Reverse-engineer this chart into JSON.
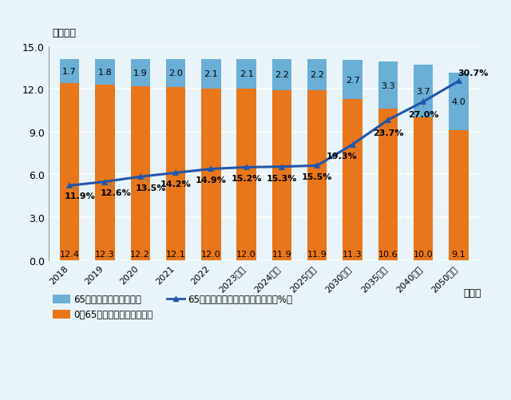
{
  "categories": [
    "2018",
    "2019",
    "2020",
    "2021",
    "2022",
    "2023予測",
    "2024予測",
    "2025予測",
    "2030予測",
    "2035予測",
    "2040予測",
    "2050予測"
  ],
  "under65": [
    12.4,
    12.3,
    12.2,
    12.1,
    12.0,
    12.0,
    11.9,
    11.9,
    11.3,
    10.6,
    10.0,
    9.1
  ],
  "over65": [
    1.7,
    1.8,
    1.9,
    2.0,
    2.1,
    2.1,
    2.2,
    2.2,
    2.7,
    3.3,
    3.7,
    4.0
  ],
  "ratio": [
    11.9,
    12.6,
    13.5,
    14.2,
    14.9,
    15.2,
    15.3,
    15.5,
    19.3,
    23.7,
    27.0,
    30.7
  ],
  "ratio_labels": [
    "11.9%",
    "12.6%",
    "13.5%",
    "14.2%",
    "14.9%",
    "15.2%",
    "15.3%",
    "15.5%",
    "19.3%",
    "23.7%",
    "27.0%",
    "30.7%"
  ],
  "color_under65": "#E8761A",
  "color_over65": "#6BAED6",
  "color_line": "#2255AA",
  "background_color": "#E8F4F9",
  "ylim": [
    0,
    15.0
  ],
  "yticks": [
    0.0,
    3.0,
    6.0,
    9.0,
    12.0,
    15.0
  ],
  "ylabel": "（億人）",
  "xlabel": "（年）",
  "legend_under65": "0～65歳未満の人口（億人）",
  "legend_over65": "65歳以上の人口（億人）",
  "legend_line": "65歳以上が総人口に占める割合（%）",
  "ratio_line_ylim_min": -1.5,
  "ratio_line_ylim_max": 37.0
}
